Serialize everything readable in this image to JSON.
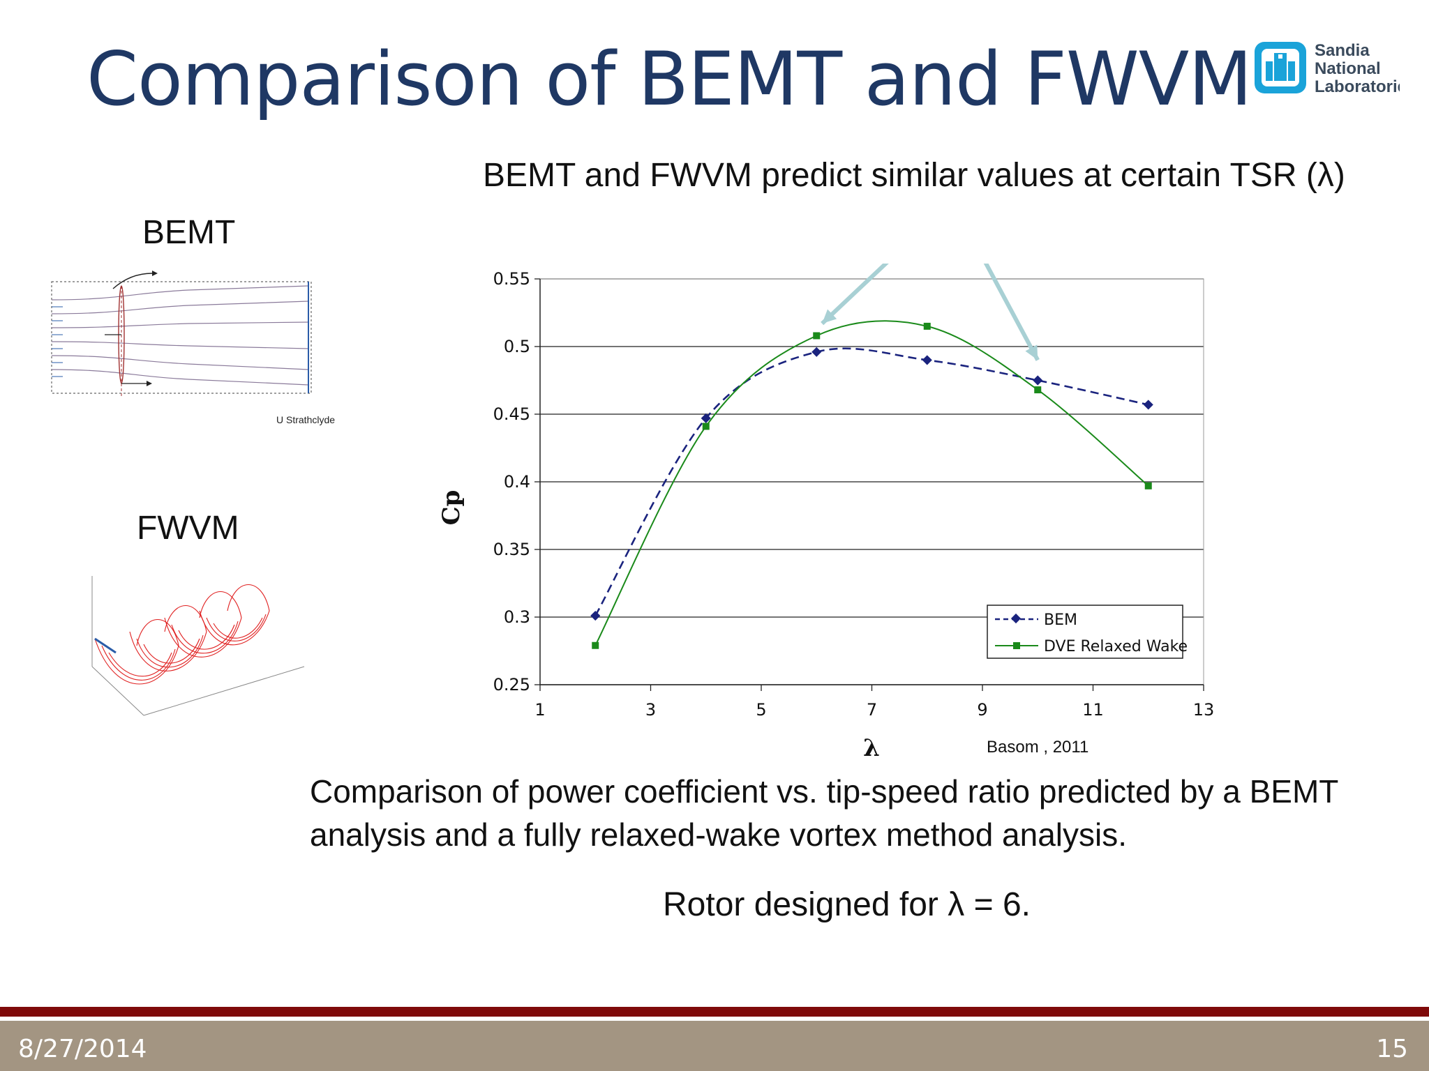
{
  "slide": {
    "title": "Comparison of BEMT and FWVM",
    "logo_lines": [
      "Sandia",
      "National",
      "Laboratories"
    ],
    "callout": "BEMT and FWVM predict similar values at certain TSR (λ)",
    "label_bemt": "BEMT",
    "label_fwvm": "FWVM",
    "bemt_credit": "U Strathclyde",
    "chart_credit": "Basom , 2011",
    "caption": "Comparison of power coefficient vs. tip-speed ratio predicted by a BEMT analysis and a fully relaxed-wake vortex method analysis.",
    "rotor_note": "Rotor designed for λ = 6.",
    "footer_date": "8/27/2014",
    "footer_page": "15",
    "colors": {
      "title": "#1f3864",
      "footer_red": "#7f0a0a",
      "footer_band": "#a39582",
      "logo": "#1aa3d9"
    }
  },
  "chart_data": {
    "type": "line",
    "xlabel": "λ",
    "ylabel": "Cp",
    "xlim": [
      1,
      13
    ],
    "ylim": [
      0.25,
      0.55
    ],
    "xticks": [
      1,
      3,
      5,
      7,
      9,
      11,
      13
    ],
    "yticks": [
      0.25,
      0.3,
      0.35,
      0.4,
      0.45,
      0.5,
      0.55
    ],
    "ytick_labels": [
      "0.25",
      "0.3",
      "0.35",
      "0.4",
      "0.45",
      "0.5",
      "0.55"
    ],
    "grid": "horizontal",
    "legend_position": "bottom-right",
    "series": [
      {
        "name": "BEM",
        "color": "#1a237e",
        "style": "dashed",
        "marker": "diamond",
        "x": [
          2,
          4,
          6,
          8,
          10,
          12
        ],
        "y": [
          0.301,
          0.447,
          0.496,
          0.49,
          0.475,
          0.457
        ]
      },
      {
        "name": "DVE Relaxed Wake",
        "color": "#1a8a1a",
        "style": "solid",
        "marker": "square",
        "x": [
          2,
          4,
          6,
          8,
          10,
          12
        ],
        "y": [
          0.279,
          0.441,
          0.508,
          0.515,
          0.468,
          0.397
        ]
      }
    ]
  }
}
